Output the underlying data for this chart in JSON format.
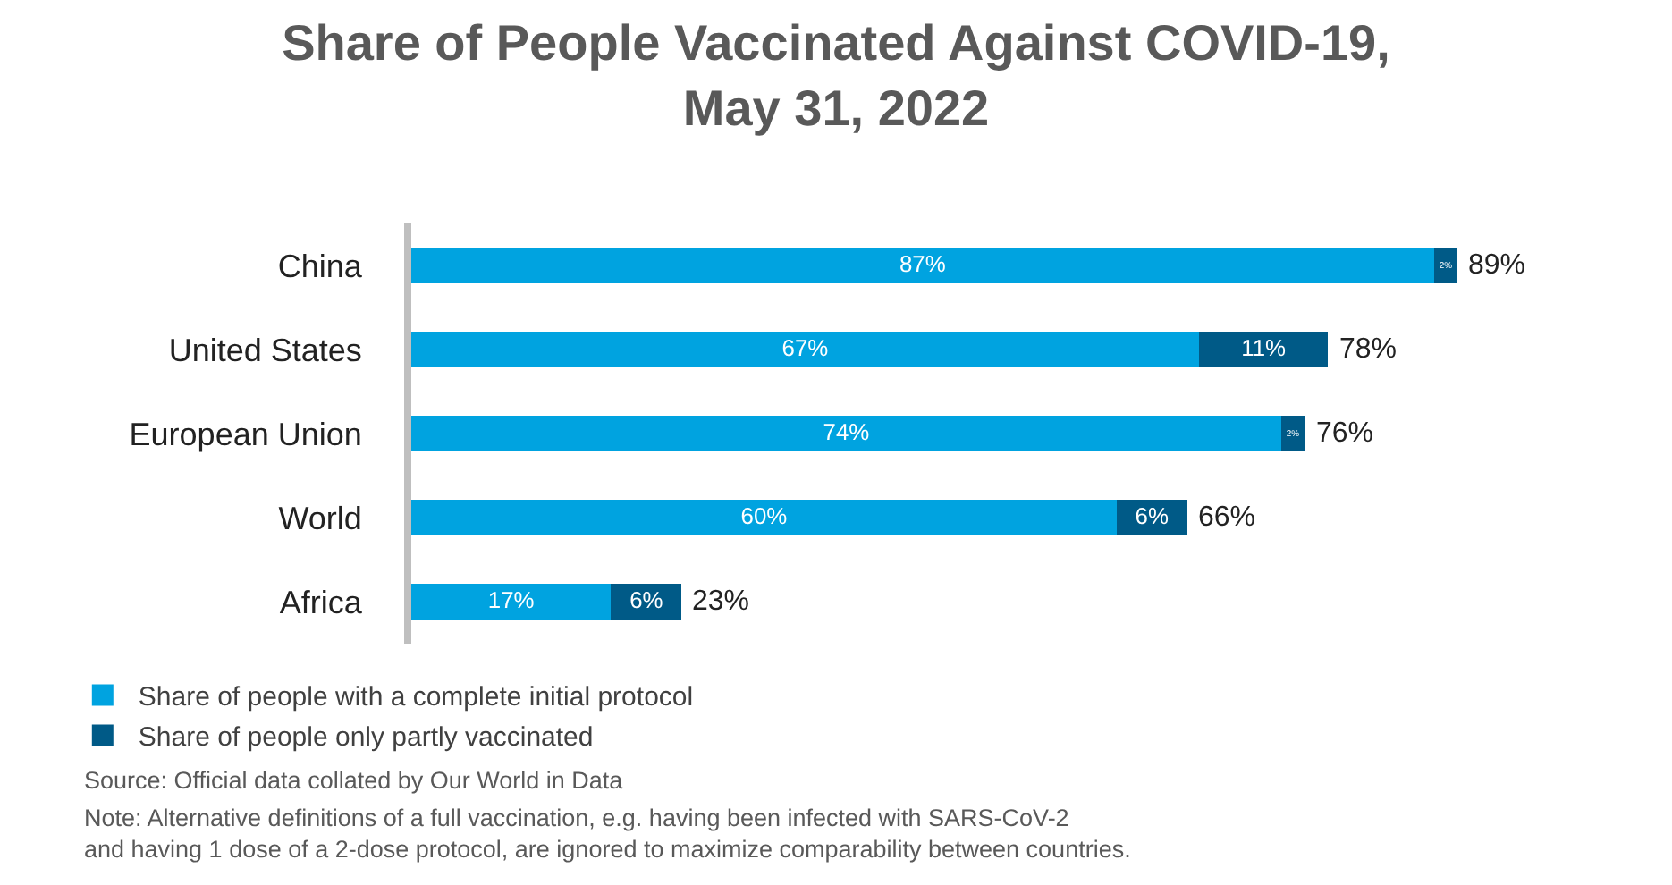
{
  "chart_data": {
    "type": "bar",
    "orientation": "horizontal",
    "stacked": true,
    "title": "Share of People Vaccinated Against COVID-19,\nMay 31, 2022",
    "categories": [
      "China",
      "United States",
      "European Union",
      "World",
      "Africa"
    ],
    "series": [
      {
        "name": "Share of people with a complete initial protocol",
        "color": "#00a3e0",
        "values": [
          87,
          67,
          74,
          60,
          17
        ],
        "value_labels": [
          "87%",
          "67%",
          "74%",
          "60%",
          "17%"
        ]
      },
      {
        "name": "Share of people only partly vaccinated",
        "color": "#005a87",
        "values": [
          2,
          11,
          2,
          6,
          6
        ],
        "value_labels": [
          "2%",
          "11%",
          "2%",
          "6%",
          "6%"
        ]
      }
    ],
    "totals": [
      "89%",
      "78%",
      "76%",
      "66%",
      "23%"
    ],
    "legend": "bottom left",
    "tick_labels": "y",
    "annotations": [
      "Source: Official data collated by Our World in Data",
      "Note: Alternative definitions of a full vaccination, e.g. having been infected with SARS-CoV-2 and having 1 dose of a 2-dose protocol, are ignored to maximize comparability between countries."
    ]
  }
}
